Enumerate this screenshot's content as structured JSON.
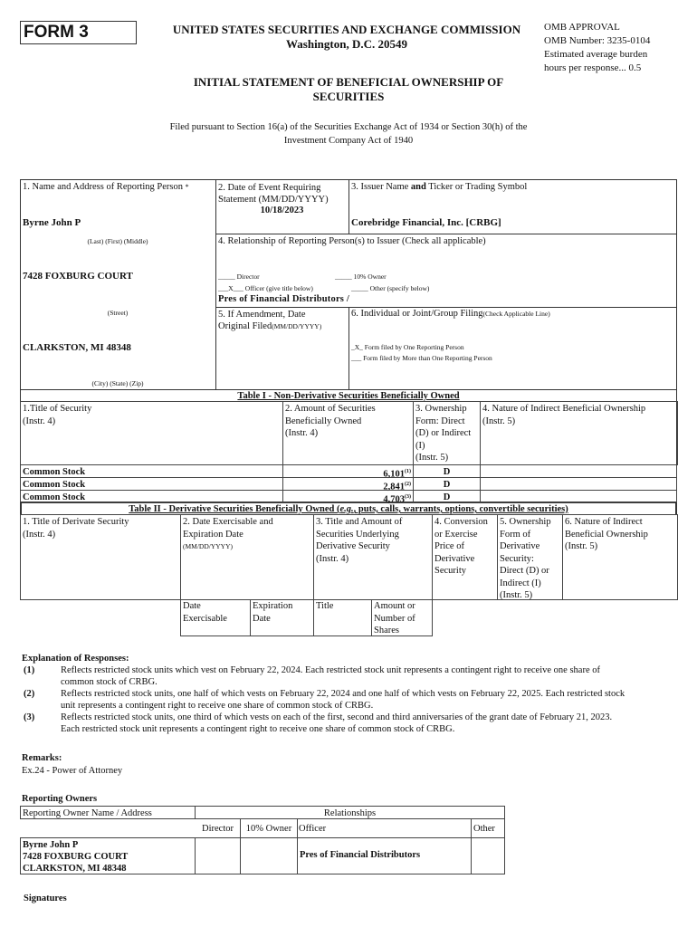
{
  "header": {
    "form_label": "FORM 3",
    "agency": "UNITED STATES SECURITIES AND EXCHANGE COMMISSION",
    "location": "Washington, D.C. 20549",
    "omb": [
      "OMB APPROVAL",
      "OMB Number: 3235-0104",
      "Estimated average burden",
      "hours per response... 0.5"
    ],
    "title_line1": "INITIAL STATEMENT OF BENEFICIAL OWNERSHIP OF",
    "title_line2": "SECURITIES",
    "filed_line1": "Filed pursuant to Section 16(a) of the Securities Exchange Act of 1934 or Section 30(h) of the",
    "filed_line2": "Investment Company Act of 1940"
  },
  "box": {
    "b1_label": "1. Name and Address of Reporting Person",
    "b1_mark": "*",
    "name": "Byrne John P",
    "name_caption": "(Last)   (First)   (Middle)",
    "street": "7428 FOXBURG COURT",
    "street_caption": "(Street)",
    "city": "CLARKSTON, MI 48348",
    "city_caption": "(City)   (State)   (Zip)",
    "b2_label_1": "2. Date of Event Requiring",
    "b2_label_2": "Statement (MM/DD/YYYY)",
    "event_date": "10/18/2023",
    "b3_label_a": "3. Issuer Name ",
    "b3_label_b": "and",
    "b3_label_c": " Ticker or Trading Symbol",
    "issuer": "Corebridge Financial, Inc. [CRBG]",
    "b4_label": "4. Relationship of Reporting Person(s) to Issuer (Check all applicable)",
    "director": "_____ Director",
    "ten_pct": "_____ 10% Owner",
    "officer": "___X___ Officer (give title below)",
    "other": "_____ Other (specify below)",
    "officer_title": "Pres of Financial Distributors /",
    "b5_label_1": "5. If Amendment, Date",
    "b5_label_2": "Original Filed",
    "b5_label_3": "(MM/DD/YYYY)",
    "b6_label": "6. Individual or Joint/Group Filing",
    "b6_sub": "(Check Applicable Line)",
    "one_person": "_X_ Form filed by One Reporting Person",
    "more_person": "___ Form filed by More than One Reporting Person"
  },
  "table1": {
    "title": "Table I - Non-Derivative Securities Beneficially Owned",
    "headers": [
      [
        "1.Title of Security",
        "(Instr. 4)"
      ],
      [
        "2. Amount of Securities",
        "Beneficially Owned",
        "(Instr. 4)"
      ],
      [
        "3. Ownership",
        "Form: Direct",
        "(D) or Indirect",
        "(I)",
        "(Instr. 5)"
      ],
      [
        "4. Nature of Indirect Beneficial Ownership",
        "(Instr. 5)"
      ]
    ],
    "rows": [
      {
        "title": "Common Stock",
        "amount": "6,101",
        "fn": "(1)",
        "form": "D",
        "nature": ""
      },
      {
        "title": "Common Stock",
        "amount": "2,841",
        "fn": "(2)",
        "form": "D",
        "nature": ""
      },
      {
        "title": "Common Stock",
        "amount": "4,703",
        "fn": "(3)",
        "form": "D",
        "nature": ""
      }
    ]
  },
  "table2": {
    "title_a": "Table II - Derivative Securities Beneficially Owned (",
    "title_b": "e.g.",
    "title_c": ", puts, calls, warrants, options, convertible securities)",
    "headers": [
      [
        "1. Title of Derivate Security",
        "(Instr. 4)"
      ],
      [
        "2. Date Exercisable and",
        "Expiration Date"
      ],
      [
        "3. Title and Amount of",
        "Securities Underlying",
        "Derivative Security",
        "(Instr. 4)"
      ],
      [
        "4. Conversion",
        "or Exercise",
        "Price of",
        "Derivative",
        "Security"
      ],
      [
        "5. Ownership",
        "Form of",
        "Derivative",
        "Security:",
        "Direct (D) or",
        "Indirect (I)",
        "(Instr. 5)"
      ],
      [
        "6. Nature of Indirect",
        "Beneficial Ownership",
        "(Instr. 5)"
      ]
    ],
    "h2_sub": "(MM/DD/YYYY)",
    "subheaders": [
      [
        "Date",
        "Exercisable"
      ],
      [
        "Expiration",
        "Date"
      ],
      [
        "Title"
      ],
      [
        "Amount or",
        "Number of",
        "Shares"
      ]
    ]
  },
  "explanation": {
    "title": "Explanation of Responses:",
    "items": [
      {
        "num": "(1)",
        "l1": "Reflects restricted stock units which vest on February 22, 2024. Each restricted stock unit represents a contingent right to receive one share of",
        "l2": "common stock of CRBG."
      },
      {
        "num": "(2)",
        "l1": "Reflects restricted stock units, one half of which vests on February 22, 2024 and one half of which vests on February 22, 2025. Each restricted stock",
        "l2": "unit represents a contingent right to receive one share of common stock of CRBG."
      },
      {
        "num": "(3)",
        "l1": "Reflects restricted stock units, one third of which vests on each of the first, second and third anniversaries of the grant date of February 21, 2023.",
        "l2": "Each restricted stock unit represents a contingent right to receive one share of common stock of CRBG."
      }
    ]
  },
  "remarks": {
    "title": "Remarks:",
    "text": "Ex.24 - Power of Attorney"
  },
  "owners": {
    "title": "Reporting Owners",
    "col_name": "Reporting Owner Name / Address",
    "col_rel": "Relationships",
    "cols": [
      "Director",
      "10% Owner",
      "Officer",
      "Other"
    ],
    "name": "Byrne John P",
    "street": "7428 FOXBURG COURT",
    "city": "CLARKSTON, MI 48348",
    "director": "",
    "ten_pct": "",
    "officer": "Pres of Financial Distributors",
    "other": ""
  },
  "signatures": {
    "title": "Signatures"
  }
}
